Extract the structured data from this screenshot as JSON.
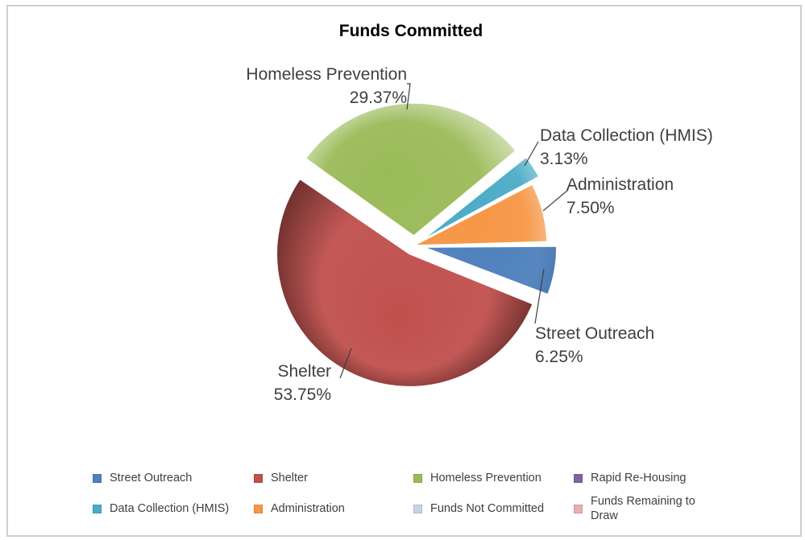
{
  "chart_data": {
    "type": "pie",
    "title": "Funds Committed",
    "slices": [
      {
        "name": "Street Outreach",
        "value": 6.25,
        "label_name": "Street Outreach",
        "label_value": "6.25%",
        "color": "#4f81bd",
        "exploded": true
      },
      {
        "name": "Shelter",
        "value": 53.75,
        "label_name": "Shelter",
        "label_value": "53.75%",
        "color": "#c0504d",
        "exploded": true
      },
      {
        "name": "Homeless Prevention",
        "value": 29.37,
        "label_name": "Homeless Prevention",
        "label_value": "29.37%",
        "color": "#9bbb59",
        "exploded": true
      },
      {
        "name": "Data Collection (HMIS)",
        "value": 3.13,
        "label_name": "Data Collection (HMIS)",
        "label_value": "3.13%",
        "color": "#4bacc6",
        "exploded": true
      },
      {
        "name": "Administration",
        "value": 7.5,
        "label_name": "Administration",
        "label_value": "7.50%",
        "color": "#f79646",
        "exploded": false
      }
    ],
    "legend": [
      {
        "label": "Street Outreach",
        "color": "#4f81bd"
      },
      {
        "label": "Shelter",
        "color": "#c0504d"
      },
      {
        "label": "Homeless Prevention",
        "color": "#9bbb59"
      },
      {
        "label": "Rapid Re-Housing",
        "color": "#8064a2"
      },
      {
        "label": "Data Collection (HMIS)",
        "color": "#4bacc6"
      },
      {
        "label": "Administration",
        "color": "#f79646"
      },
      {
        "label": "Funds Not Committed",
        "color": "#c6d3e8"
      },
      {
        "label": "Funds Remaining to Draw",
        "color": "#e6b0ae"
      }
    ],
    "legend_placement": "bottom"
  }
}
